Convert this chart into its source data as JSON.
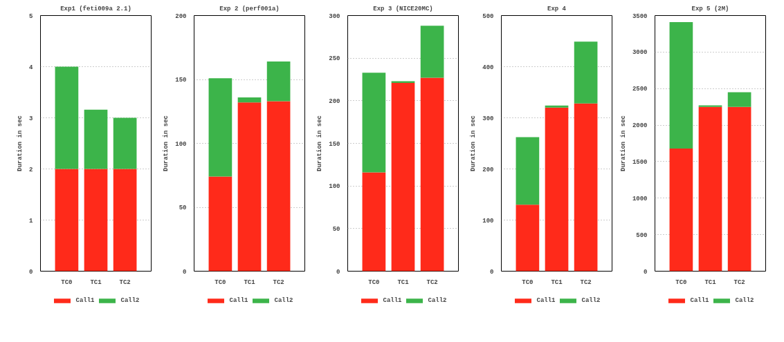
{
  "chart_data": [
    {
      "type": "bar",
      "stacked": true,
      "title": "Exp1 (feti009a 2.1)",
      "ylabel": "Duration in sec",
      "categories": [
        "TC0",
        "TC1",
        "TC2"
      ],
      "ylim": [
        0,
        5
      ],
      "yticks": [
        0,
        1,
        2,
        3,
        4,
        5
      ],
      "grid": "y",
      "legend": "bottom",
      "series": [
        {
          "name": "Call1",
          "color": "#ff2a1a",
          "values": [
            2,
            2,
            2
          ]
        },
        {
          "name": "Call2",
          "color": "#3cb44a",
          "values": [
            2,
            1.16,
            1
          ]
        }
      ]
    },
    {
      "type": "bar",
      "stacked": true,
      "title": "Exp 2 (perf001a)",
      "ylabel": "Duration in sec",
      "categories": [
        "TC0",
        "TC1",
        "TC2"
      ],
      "ylim": [
        0,
        200
      ],
      "yticks": [
        0,
        50,
        100,
        150,
        200
      ],
      "grid": "y",
      "legend": "bottom",
      "series": [
        {
          "name": "Call1",
          "color": "#ff2a1a",
          "values": [
            74,
            132,
            133
          ]
        },
        {
          "name": "Call2",
          "color": "#3cb44a",
          "values": [
            77,
            4,
            31
          ]
        }
      ]
    },
    {
      "type": "bar",
      "stacked": true,
      "title": "Exp 3 (NICE20MC)",
      "ylabel": "Duration in sec",
      "categories": [
        "TC0",
        "TC1",
        "TC2"
      ],
      "ylim": [
        0,
        300
      ],
      "yticks": [
        0,
        50,
        100,
        150,
        200,
        250,
        300
      ],
      "grid": "y",
      "legend": "bottom",
      "series": [
        {
          "name": "Call1",
          "color": "#ff2a1a",
          "values": [
            116,
            221,
            227
          ]
        },
        {
          "name": "Call2",
          "color": "#3cb44a",
          "values": [
            117,
            2,
            61
          ]
        }
      ]
    },
    {
      "type": "bar",
      "stacked": true,
      "title": "Exp 4",
      "ylabel": "Duration in sec",
      "categories": [
        "TC0",
        "TC1",
        "TC2"
      ],
      "ylim": [
        0,
        500
      ],
      "yticks": [
        0,
        100,
        200,
        300,
        400,
        500
      ],
      "grid": "y",
      "legend": "bottom",
      "series": [
        {
          "name": "Call1",
          "color": "#ff2a1a",
          "values": [
            130,
            320,
            328
          ]
        },
        {
          "name": "Call2",
          "color": "#3cb44a",
          "values": [
            132,
            4,
            121
          ]
        }
      ]
    },
    {
      "type": "bar",
      "stacked": true,
      "title": "Exp 5 (2M)",
      "ylabel": "Duration in sec",
      "categories": [
        "TC0",
        "TC1",
        "TC2"
      ],
      "ylim": [
        0,
        3500
      ],
      "yticks": [
        0,
        500,
        1000,
        1500,
        2000,
        2500,
        3000,
        3500
      ],
      "grid": "y",
      "legend": "bottom",
      "series": [
        {
          "name": "Call1",
          "color": "#ff2a1a",
          "values": [
            1680,
            2250,
            2250
          ]
        },
        {
          "name": "Call2",
          "color": "#3cb44a",
          "values": [
            1730,
            20,
            200
          ]
        }
      ]
    }
  ]
}
